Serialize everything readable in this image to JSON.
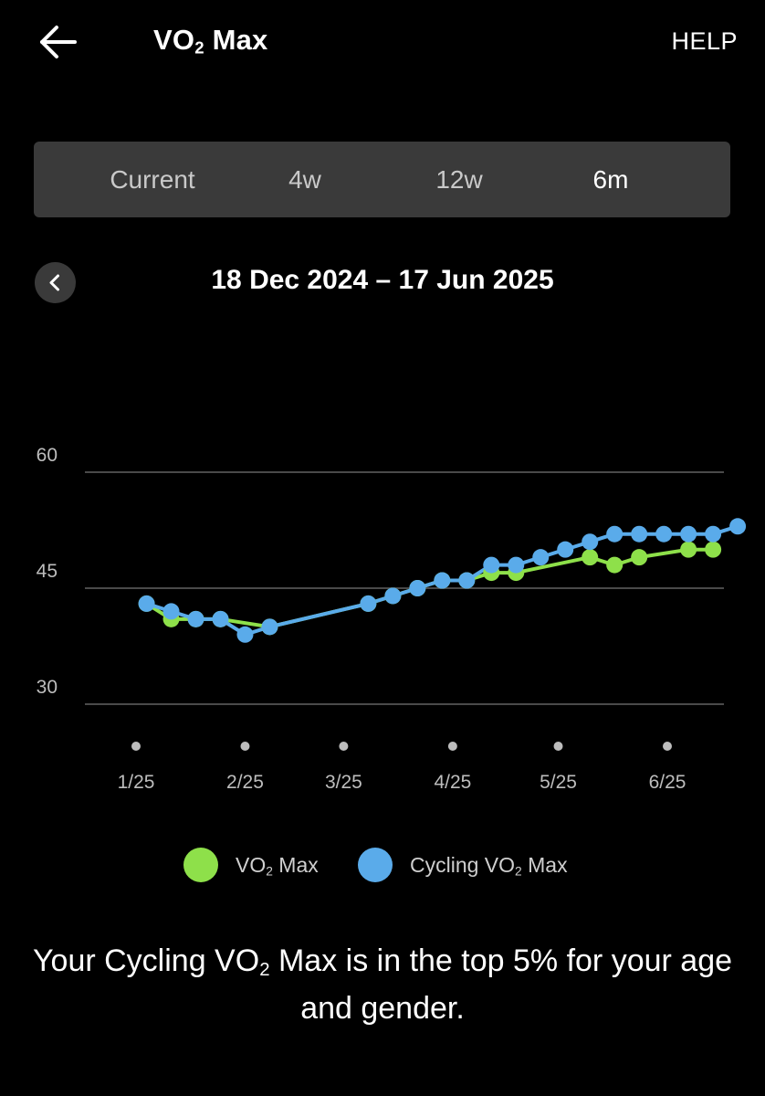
{
  "header": {
    "back_icon": "arrow-left-icon",
    "title_main": "VO",
    "title_sub": "2",
    "title_rest": " Max",
    "help_label": "HELP"
  },
  "range_tabs": [
    {
      "label": "Current",
      "active": false
    },
    {
      "label": "4w",
      "active": false
    },
    {
      "label": "12w",
      "active": false
    },
    {
      "label": "6m",
      "active": true
    }
  ],
  "period": {
    "prev_icon": "chevron-left-icon",
    "label": "18 Dec 2024 – 17 Jun 2025"
  },
  "colors": {
    "vo2_max": "#8ee04a",
    "cycling_vo2_max": "#5aabea",
    "grid": "#4a4a4a",
    "axis_text": "#bdbdbd"
  },
  "chart_data": {
    "type": "line",
    "ylim": [
      30,
      60
    ],
    "yticks": [
      30,
      45,
      60
    ],
    "xticks": [
      {
        "label": "1/25",
        "date": "2025-01-01"
      },
      {
        "label": "2/25",
        "date": "2025-02-01"
      },
      {
        "label": "3/25",
        "date": "2025-03-01"
      },
      {
        "label": "4/25",
        "date": "2025-04-01"
      },
      {
        "label": "5/25",
        "date": "2025-05-01"
      },
      {
        "label": "6/25",
        "date": "2025-06-01"
      }
    ],
    "xlim": [
      "2024-12-18",
      "2025-06-17"
    ],
    "grid": true,
    "legend": "bottom",
    "series": [
      {
        "name": "VO2 Max",
        "color_key": "vo2_max",
        "points": [
          [
            "2025-01-04",
            43
          ],
          [
            "2025-01-11",
            41
          ],
          [
            "2025-01-18",
            41
          ],
          [
            "2025-01-25",
            41
          ],
          [
            "2025-02-08",
            40
          ],
          [
            "2025-03-08",
            43
          ],
          [
            "2025-03-15",
            44
          ],
          [
            "2025-03-22",
            45
          ],
          [
            "2025-03-29",
            46
          ],
          [
            "2025-04-05",
            46
          ],
          [
            "2025-04-12",
            47
          ],
          [
            "2025-04-19",
            47
          ],
          [
            "2025-05-10",
            49
          ],
          [
            "2025-05-17",
            48
          ],
          [
            "2025-05-24",
            49
          ],
          [
            "2025-06-07",
            50
          ],
          [
            "2025-06-14",
            50
          ]
        ]
      },
      {
        "name": "Cycling VO2 Max",
        "color_key": "cycling_vo2_max",
        "points": [
          [
            "2025-01-04",
            43
          ],
          [
            "2025-01-11",
            42
          ],
          [
            "2025-01-18",
            41
          ],
          [
            "2025-01-25",
            41
          ],
          [
            "2025-02-01",
            39
          ],
          [
            "2025-02-08",
            40
          ],
          [
            "2025-03-08",
            43
          ],
          [
            "2025-03-15",
            44
          ],
          [
            "2025-03-22",
            45
          ],
          [
            "2025-03-29",
            46
          ],
          [
            "2025-04-05",
            46
          ],
          [
            "2025-04-12",
            48
          ],
          [
            "2025-04-19",
            48
          ],
          [
            "2025-04-26",
            49
          ],
          [
            "2025-05-03",
            50
          ],
          [
            "2025-05-10",
            51
          ],
          [
            "2025-05-17",
            52
          ],
          [
            "2025-05-24",
            52
          ],
          [
            "2025-05-31",
            52
          ],
          [
            "2025-06-07",
            52
          ],
          [
            "2025-06-14",
            52
          ],
          [
            "2025-06-21",
            53
          ]
        ]
      }
    ]
  },
  "legend": [
    {
      "label_main": "VO",
      "label_sub": "2",
      "label_rest": " Max",
      "color_key": "vo2_max"
    },
    {
      "label_main": "Cycling VO",
      "label_sub": "2",
      "label_rest": " Max",
      "color_key": "cycling_vo2_max"
    }
  ],
  "insight": {
    "part1": "Your Cycling VO",
    "sub": "2",
    "part2": " Max is in the top 5% for your age and gender."
  }
}
